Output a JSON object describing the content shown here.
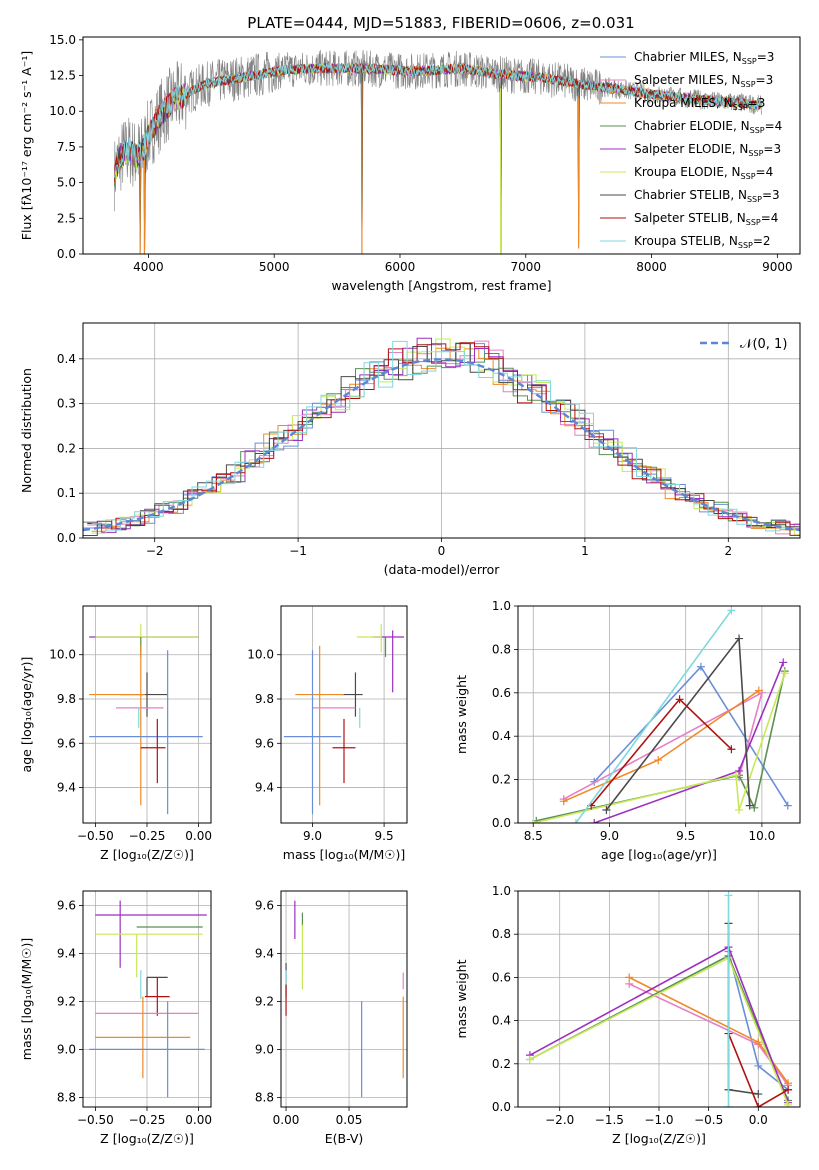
{
  "figure": {
    "title": "PLATE=0444, MJD=51883, FIBERID=0606, z=0.031"
  },
  "chart_data": [
    {
      "id": "spectrum",
      "type": "line",
      "xlabel": "wavelength [Angstrom, rest frame]",
      "ylabel": "Flux [fλ10⁻¹⁷ erg cm⁻² s⁻¹ A⁻¹]",
      "xlim": [
        3480,
        9180
      ],
      "ylim": [
        0,
        15.2
      ],
      "xticks": [
        4000,
        5000,
        6000,
        7000,
        8000,
        9000
      ],
      "yticks": [
        0.0,
        2.5,
        5.0,
        7.5,
        10.0,
        12.5,
        15.0
      ],
      "grid": false,
      "legend_position": "top-right",
      "observed": {
        "name": "",
        "color": "#808080"
      },
      "continuum": {
        "x": [
          3730,
          3760,
          3800,
          3850,
          3900,
          3950,
          4000,
          4100,
          4200,
          4300,
          4400,
          4500,
          4700,
          4900,
          5100,
          5300,
          5500,
          5700,
          5900,
          6100,
          6300,
          6500,
          6700,
          6900,
          7100,
          7300,
          7500,
          7700,
          7900,
          8100,
          8300,
          8500,
          8700,
          8880
        ],
        "y": [
          5.6,
          6.5,
          7.0,
          7.3,
          6.8,
          7.2,
          8.3,
          9.8,
          10.8,
          11.2,
          11.7,
          12.0,
          12.3,
          12.6,
          12.9,
          13.0,
          13.0,
          13.0,
          12.9,
          12.8,
          12.9,
          13.0,
          12.7,
          12.5,
          12.4,
          12.1,
          11.8,
          11.6,
          11.3,
          11.1,
          10.9,
          10.7,
          10.6,
          10.4
        ]
      },
      "absorption_lines": [
        {
          "x": 3934,
          "y": 0.0
        },
        {
          "x": 3968,
          "y": 0.0
        },
        {
          "x": 5697,
          "y": 0.0
        },
        {
          "x": 6800,
          "y": 0.0
        },
        {
          "x": 7420,
          "y": 0.4
        }
      ],
      "series": [
        {
          "name": "Chabrier MILES, N",
          "sub": "SSP",
          "suffix": "=3",
          "color": "#6a8fd8"
        },
        {
          "name": "Salpeter MILES, N",
          "sub": "SSP",
          "suffix": "=3",
          "color": "#e87fc6"
        },
        {
          "name": "Kroupa MILES, N",
          "sub": "SSP",
          "suffix": "=3",
          "color": "#f08a27"
        },
        {
          "name": "Chabrier ELODIE, N",
          "sub": "SSP",
          "suffix": "=4",
          "color": "#5b8f53"
        },
        {
          "name": "Salpeter ELODIE, N",
          "sub": "SSP",
          "suffix": "=3",
          "color": "#9c2fbf"
        },
        {
          "name": "Kroupa ELODIE, N",
          "sub": "SSP",
          "suffix": "=4",
          "color": "#c8e85a"
        },
        {
          "name": "Chabrier STELIB, N",
          "sub": "SSP",
          "suffix": "=3",
          "color": "#4a4a4a"
        },
        {
          "name": "Salpeter STELIB, N",
          "sub": "SSP",
          "suffix": "=4",
          "color": "#b01212"
        },
        {
          "name": "Kroupa STELIB, N",
          "sub": "SSP",
          "suffix": "=2",
          "color": "#7fd9dd"
        }
      ]
    },
    {
      "id": "residuals",
      "type": "line",
      "xlabel": "(data-model)/error",
      "ylabel": "Normed distribution",
      "xlim": [
        -2.5,
        2.5
      ],
      "ylim": [
        0,
        0.48
      ],
      "xticks": [
        -2,
        -1,
        0,
        1,
        2
      ],
      "xtick_labels": [
        "−2",
        "−1",
        "0",
        "1",
        "2"
      ],
      "yticks": [
        0.0,
        0.1,
        0.2,
        0.3,
        0.4
      ],
      "grid": true,
      "legend_position": "top-right",
      "gaussian_label": "𝒩(0, 1)",
      "gaussian_color": "#5b87d6"
    },
    {
      "id": "age_vs_Z",
      "type": "scatter",
      "xlabel": "Z [log₁₀(Z/Z☉)]",
      "ylabel": "age  [log₁₀(age/yr)]",
      "xlim": [
        -0.56,
        0.06
      ],
      "ylim": [
        9.24,
        10.22
      ],
      "xticks": [
        -0.5,
        -0.25,
        0.0
      ],
      "xtick_labels": [
        "−0.50",
        "−0.25",
        "0.00"
      ],
      "yticks": [
        9.4,
        9.6,
        9.8,
        10.0
      ],
      "grid": true,
      "points": [
        {
          "x": -0.2,
          "xerr": [
            0.33,
            0.2
          ],
          "y": 10.08,
          "yerr": [
            0.0,
            0.0
          ],
          "color": "#9c2fbf"
        },
        {
          "x": -0.28,
          "xerr": [
            0.22,
            0.28
          ],
          "y": 10.08,
          "yerr": [
            0.07,
            0.06
          ],
          "color": "#c8e85a"
        },
        {
          "x": -0.28,
          "xerr": [
            0.0,
            0.0
          ],
          "y": 10.08,
          "yerr": [
            0.09,
            0.0
          ],
          "color": "#5b8f53"
        },
        {
          "x": -0.25,
          "xerr": [
            0.13,
            0.1
          ],
          "y": 9.82,
          "yerr": [
            0.1,
            0.1
          ],
          "color": "#4a4a4a"
        },
        {
          "x": -0.28,
          "xerr": [
            0.25,
            0.02
          ],
          "y": 9.82,
          "yerr": [
            0.5,
            0.22
          ],
          "color": "#f08a27"
        },
        {
          "x": -0.25,
          "xerr": [
            0.15,
            0.08
          ],
          "y": 9.76,
          "yerr": [
            0.0,
            0.0
          ],
          "color": "#e87fc6"
        },
        {
          "x": -0.29,
          "xerr": [
            0.0,
            0.0
          ],
          "y": 9.76,
          "yerr": [
            0.09,
            0.0
          ],
          "color": "#7fd9dd"
        },
        {
          "x": -0.15,
          "xerr": [
            0.38,
            0.17
          ],
          "y": 9.63,
          "yerr": [
            0.35,
            0.39
          ],
          "color": "#6a8fd8"
        },
        {
          "x": -0.2,
          "xerr": [
            0.08,
            0.04
          ],
          "y": 9.58,
          "yerr": [
            0.16,
            0.13
          ],
          "color": "#b01212"
        }
      ]
    },
    {
      "id": "age_vs_mass",
      "type": "scatter",
      "xlabel": "mass [log₁₀(M/M☉)]",
      "ylabel": "",
      "xlim": [
        8.78,
        9.66
      ],
      "ylim": [
        9.24,
        10.22
      ],
      "xticks": [
        9.0,
        9.5
      ],
      "xtick_labels": [
        "9.0",
        "9.5"
      ],
      "yticks": [
        9.4,
        9.6,
        9.8,
        10.0
      ],
      "grid": true,
      "points": [
        {
          "x": 9.56,
          "xerr": [
            0.14,
            0.08
          ],
          "y": 10.08,
          "yerr": [
            0.25,
            0.03
          ],
          "color": "#9c2fbf"
        },
        {
          "x": 9.48,
          "xerr": [
            0.17,
            0.0
          ],
          "y": 10.08,
          "yerr": [
            0.07,
            0.06
          ],
          "color": "#c8e85a"
        },
        {
          "x": 9.51,
          "xerr": [
            0.0,
            0.0
          ],
          "y": 10.08,
          "yerr": [
            0.09,
            0.0
          ],
          "color": "#5b8f53"
        },
        {
          "x": 9.3,
          "xerr": [
            0.1,
            0.05
          ],
          "y": 9.82,
          "yerr": [
            0.1,
            0.1
          ],
          "color": "#4a4a4a"
        },
        {
          "x": 9.05,
          "xerr": [
            0.17,
            0.17
          ],
          "y": 9.82,
          "yerr": [
            0.5,
            0.22
          ],
          "color": "#f08a27"
        },
        {
          "x": 9.15,
          "xerr": [
            0.15,
            0.15
          ],
          "y": 9.76,
          "yerr": [
            0.0,
            0.0
          ],
          "color": "#e87fc6"
        },
        {
          "x": 9.33,
          "xerr": [
            0.0,
            0.0
          ],
          "y": 9.76,
          "yerr": [
            0.09,
            0.0
          ],
          "color": "#7fd9dd"
        },
        {
          "x": 9.0,
          "xerr": [
            0.2,
            0.2
          ],
          "y": 9.63,
          "yerr": [
            0.35,
            0.39
          ],
          "color": "#6a8fd8"
        },
        {
          "x": 9.22,
          "xerr": [
            0.08,
            0.08
          ],
          "y": 9.58,
          "yerr": [
            0.16,
            0.13
          ],
          "color": "#b01212"
        }
      ]
    },
    {
      "id": "mass_weight_vs_age",
      "type": "line",
      "xlabel": "age  [log₁₀(age/yr)]",
      "ylabel": "mass weight",
      "xlim": [
        8.4,
        10.25
      ],
      "ylim": [
        0,
        1
      ],
      "xticks": [
        8.5,
        9.0,
        9.5,
        10.0
      ],
      "xtick_labels": [
        "8.5",
        "9.0",
        "9.5",
        "10.0"
      ],
      "yticks": [
        0.0,
        0.2,
        0.4,
        0.6,
        0.8,
        1.0
      ],
      "grid": true,
      "series": [
        {
          "color": "#6a8fd8",
          "x": [
            8.9,
            9.6,
            10.17
          ],
          "y": [
            0.19,
            0.72,
            0.08
          ]
        },
        {
          "color": "#e87fc6",
          "x": [
            8.7,
            10.0,
            9.85
          ],
          "y": [
            0.11,
            0.6,
            0.21
          ]
        },
        {
          "color": "#f08a27",
          "x": [
            8.7,
            9.32,
            9.98
          ],
          "y": [
            0.1,
            0.29,
            0.61
          ]
        },
        {
          "color": "#5b8f53",
          "x": [
            8.52,
            9.85,
            9.95,
            10.15
          ],
          "y": [
            0.01,
            0.22,
            0.07,
            0.7
          ]
        },
        {
          "color": "#9c2fbf",
          "x": [
            8.9,
            9.85,
            10.14
          ],
          "y": [
            0.0,
            0.24,
            0.74
          ]
        },
        {
          "color": "#c8e85a",
          "x": [
            8.5,
            9.83,
            9.85,
            10.15
          ],
          "y": [
            0.0,
            0.22,
            0.06,
            0.69
          ]
        },
        {
          "color": "#4a4a4a",
          "x": [
            8.98,
            9.85,
            9.92
          ],
          "y": [
            0.06,
            0.85,
            0.08
          ]
        },
        {
          "color": "#b01212",
          "x": [
            8.88,
            9.46,
            9.8
          ],
          "y": [
            0.08,
            0.57,
            0.34
          ]
        },
        {
          "color": "#7fd9dd",
          "x": [
            8.78,
            9.8
          ],
          "y": [
            0.0,
            0.98
          ]
        }
      ]
    },
    {
      "id": "mass_vs_Z",
      "type": "scatter",
      "xlabel": "Z [log₁₀(Z/Z☉)]",
      "ylabel": "mass [log₁₀(M/M☉)]",
      "xlim": [
        -0.56,
        0.06
      ],
      "ylim": [
        8.76,
        9.66
      ],
      "xticks": [
        -0.5,
        -0.25,
        0.0
      ],
      "xtick_labels": [
        "−0.50",
        "−0.25",
        "0.00"
      ],
      "yticks": [
        8.8,
        9.0,
        9.2,
        9.4,
        9.6
      ],
      "grid": true,
      "points": [
        {
          "x": -0.38,
          "xerr": [
            0.12,
            0.42
          ],
          "y": 9.56,
          "yerr": [
            0.22,
            0.06
          ],
          "color": "#9c2fbf"
        },
        {
          "x": -0.3,
          "xerr": [
            0.0,
            0.32
          ],
          "y": 9.51,
          "yerr": [
            0.0,
            0.0
          ],
          "color": "#5b8f53"
        },
        {
          "x": -0.3,
          "xerr": [
            0.2,
            0.32
          ],
          "y": 9.48,
          "yerr": [
            0.18,
            0.0
          ],
          "color": "#c8e85a"
        },
        {
          "x": -0.25,
          "xerr": [
            0.0,
            0.1
          ],
          "y": 9.3,
          "yerr": [
            0.08,
            0.0
          ],
          "color": "#4a4a4a"
        },
        {
          "x": -0.28,
          "xerr": [
            0.0,
            0.0
          ],
          "y": 9.28,
          "yerr": [
            0.07,
            0.05
          ],
          "color": "#7fd9dd"
        },
        {
          "x": -0.2,
          "xerr": [
            0.06,
            0.06
          ],
          "y": 9.22,
          "yerr": [
            0.08,
            0.08
          ],
          "color": "#b01212"
        },
        {
          "x": -0.25,
          "xerr": [
            0.25,
            0.25
          ],
          "y": 9.15,
          "yerr": [
            0.0,
            0.0
          ],
          "color": "#e87fc6"
        },
        {
          "x": -0.27,
          "xerr": [
            0.23,
            0.23
          ],
          "y": 9.05,
          "yerr": [
            0.17,
            0.17
          ],
          "color": "#f08a27"
        },
        {
          "x": -0.15,
          "xerr": [
            0.38,
            0.18
          ],
          "y": 9.0,
          "yerr": [
            0.2,
            0.2
          ],
          "color": "#6a8fd8"
        }
      ]
    },
    {
      "id": "mass_vs_EBV",
      "type": "scatter",
      "xlabel": "E(B-V)",
      "ylabel": "",
      "xlim": [
        -0.004,
        0.096
      ],
      "ylim": [
        8.76,
        9.66
      ],
      "xticks": [
        0.0,
        0.05
      ],
      "xtick_labels": [
        "0.00",
        "0.05"
      ],
      "yticks": [
        8.8,
        9.0,
        9.2,
        9.4,
        9.6
      ],
      "grid": true,
      "points": [
        {
          "x": 0.007,
          "y": 9.56,
          "yerr": [
            0.1,
            0.06
          ],
          "color": "#9c2fbf"
        },
        {
          "x": 0.013,
          "y": 9.51,
          "yerr": [
            0.0,
            0.06
          ],
          "color": "#5b8f53"
        },
        {
          "x": 0.013,
          "y": 9.4,
          "yerr": [
            0.15,
            0.12
          ],
          "color": "#c8e85a"
        },
        {
          "x": 0.0,
          "y": 9.3,
          "yerr": [
            0.08,
            0.06
          ],
          "color": "#4a4a4a"
        },
        {
          "x": 0.0,
          "y": 9.28,
          "yerr": [
            0.07,
            0.05
          ],
          "color": "#7fd9dd"
        },
        {
          "x": 0.0,
          "y": 9.22,
          "yerr": [
            0.08,
            0.05
          ],
          "color": "#b01212"
        },
        {
          "x": 0.093,
          "y": 9.25,
          "yerr": [
            0.0,
            0.07
          ],
          "color": "#e87fc6"
        },
        {
          "x": 0.093,
          "y": 9.05,
          "yerr": [
            0.17,
            0.17
          ],
          "color": "#f08a27"
        },
        {
          "x": 0.06,
          "y": 9.0,
          "yerr": [
            0.2,
            0.2
          ],
          "color": "#6a8fd8"
        }
      ]
    },
    {
      "id": "mass_weight_vs_Z",
      "type": "line",
      "xlabel": "Z [log₁₀(Z/Z☉)]",
      "ylabel": "mass weight",
      "xlim": [
        -2.42,
        0.42
      ],
      "ylim": [
        0,
        1
      ],
      "xticks": [
        -2.0,
        -1.5,
        -1.0,
        -0.5,
        0.0
      ],
      "xtick_labels": [
        "−2.0",
        "−1.5",
        "−1.0",
        "−0.5",
        "0.0"
      ],
      "yticks": [
        0.0,
        0.2,
        0.4,
        0.6,
        0.8,
        1.0
      ],
      "grid": true,
      "series": [
        {
          "color": "#6a8fd8",
          "x": [
            -0.3,
            0.0,
            0.3
          ],
          "y": [
            0.72,
            0.19,
            0.08
          ]
        },
        {
          "color": "#e87fc6",
          "x": [
            -1.3,
            0.0,
            0.3
          ],
          "y": [
            0.57,
            0.29,
            0.1
          ]
        },
        {
          "color": "#f08a27",
          "x": [
            -1.3,
            0.0,
            0.3
          ],
          "y": [
            0.6,
            0.3,
            0.11
          ]
        },
        {
          "color": "#5b8f53",
          "x": [
            -2.3,
            -0.3,
            0.3
          ],
          "y": [
            0.22,
            0.7,
            0.03
          ]
        },
        {
          "color": "#9c2fbf",
          "x": [
            -2.3,
            -0.3,
            0.3
          ],
          "y": [
            0.24,
            0.74,
            0.02
          ]
        },
        {
          "color": "#c8e85a",
          "x": [
            -2.3,
            -0.3,
            0.3
          ],
          "y": [
            0.22,
            0.69,
            0.01
          ]
        },
        {
          "color": "#4a4a4a",
          "x": [
            -0.3,
            -0.3,
            0.0
          ],
          "y": [
            0.85,
            0.08,
            0.06
          ]
        },
        {
          "color": "#b01212",
          "x": [
            -0.3,
            0.0,
            0.3
          ],
          "y": [
            0.34,
            0.0,
            0.08
          ]
        },
        {
          "color": "#7fd9dd",
          "x": [
            -0.3,
            -0.3
          ],
          "y": [
            0.98,
            0.0
          ]
        }
      ]
    }
  ]
}
